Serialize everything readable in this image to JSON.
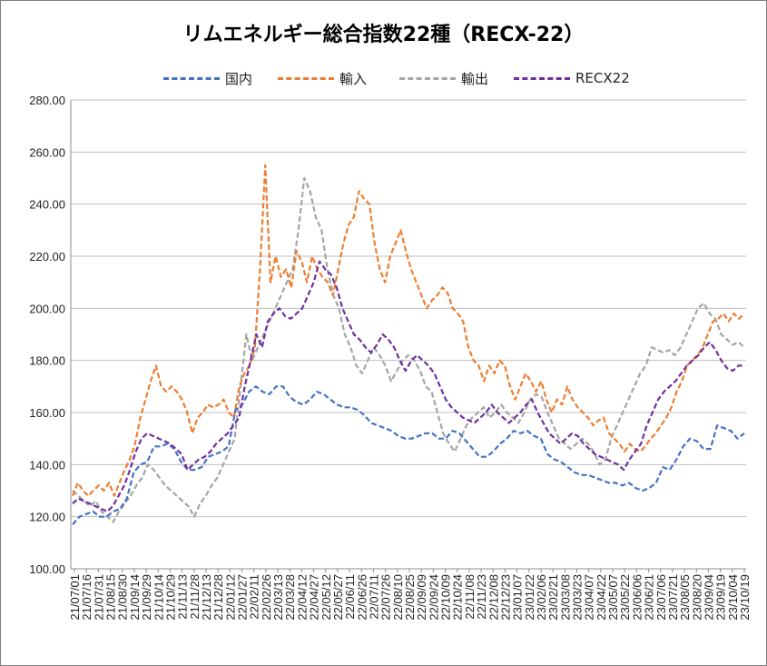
{
  "chart_data": {
    "type": "line",
    "title": "リムエネルギー総合指数22種（RECX-22）",
    "ylim": [
      100,
      280
    ],
    "yticks": [
      "100.00",
      "120.00",
      "140.00",
      "160.00",
      "180.00",
      "200.00",
      "220.00",
      "240.00",
      "260.00",
      "280.00"
    ],
    "x_labels": [
      "21/07/01",
      "21/07/16",
      "21/07/31",
      "21/08/15",
      "21/08/30",
      "21/09/14",
      "21/09/29",
      "21/10/14",
      "21/10/29",
      "21/11/13",
      "21/11/28",
      "21/12/13",
      "21/12/28",
      "22/01/12",
      "22/01/27",
      "22/02/11",
      "22/02/26",
      "22/03/13",
      "22/03/28",
      "22/04/12",
      "22/04/27",
      "22/05/12",
      "22/05/27",
      "22/06/11",
      "22/06/26",
      "22/07/11",
      "22/07/26",
      "22/08/10",
      "22/08/25",
      "22/09/09",
      "22/09/24",
      "22/10/09",
      "22/10/24",
      "22/11/08",
      "22/11/23",
      "22/12/08",
      "22/12/23",
      "23/01/07",
      "23/01/22",
      "23/02/06",
      "23/02/21",
      "23/03/08",
      "23/03/23",
      "23/04/07",
      "23/04/22",
      "23/05/07",
      "23/05/22",
      "23/06/06",
      "23/06/21",
      "23/07/06",
      "23/07/21",
      "23/08/05",
      "23/08/20",
      "23/09/04",
      "23/09/19",
      "23/10/04",
      "23/10/19"
    ],
    "grid": true,
    "legend_position": "top",
    "series": [
      {
        "name": "国内",
        "color": "#4472C4",
        "values": [
          117,
          120,
          121,
          122,
          120,
          120,
          122,
          123,
          127,
          137,
          140,
          141,
          147,
          147,
          148,
          146,
          141,
          138,
          138,
          139,
          143,
          144,
          145,
          147,
          161,
          163,
          168,
          170,
          168,
          167,
          170,
          170,
          166,
          164,
          163,
          165,
          168,
          167,
          165,
          163,
          162,
          162,
          161,
          159,
          156,
          155,
          154,
          153,
          151,
          150,
          150,
          151,
          152,
          152,
          150,
          150,
          153,
          152,
          149,
          146,
          143,
          143,
          145,
          148,
          150,
          153,
          152,
          153,
          151,
          150,
          144,
          142,
          141,
          139,
          137,
          136,
          136,
          135,
          134,
          133,
          133,
          132,
          133,
          131,
          130,
          131,
          133,
          139,
          138,
          142,
          147,
          150,
          149,
          146,
          146,
          155,
          154,
          153,
          150,
          152
        ]
      },
      {
        "name": "輸入",
        "color": "#ED7D31",
        "values": [
          128,
          133,
          130,
          128,
          130,
          132,
          130,
          133,
          128,
          133,
          138,
          142,
          148,
          158,
          165,
          172,
          178,
          170,
          168,
          170,
          168,
          165,
          160,
          152,
          158,
          160,
          163,
          162,
          163,
          165,
          160,
          158,
          170,
          175,
          178,
          185,
          215,
          255,
          210,
          220,
          212,
          215,
          208,
          222,
          218,
          210,
          220,
          215,
          212,
          210,
          205,
          215,
          225,
          232,
          235,
          245,
          242,
          240,
          225,
          215,
          210,
          220,
          225,
          230,
          222,
          215,
          210,
          205,
          200,
          203,
          205,
          208,
          206,
          200,
          198,
          195,
          185,
          180,
          178,
          172,
          178,
          175,
          180,
          178,
          170,
          165,
          170,
          175,
          172,
          168,
          172,
          165,
          160,
          165,
          163,
          170,
          165,
          162,
          160,
          158,
          155,
          157,
          158,
          152,
          150,
          148,
          145,
          148,
          146,
          145,
          147,
          150,
          152,
          155,
          158,
          162,
          168,
          172,
          178,
          180,
          182,
          185,
          190,
          195,
          196,
          198,
          195,
          198,
          196,
          198
        ]
      },
      {
        "name": "輸出",
        "color": "#A5A5A5",
        "values": [
          130,
          128,
          126,
          124,
          126,
          122,
          120,
          118,
          122,
          125,
          128,
          132,
          135,
          140,
          138,
          135,
          132,
          130,
          128,
          126,
          124,
          120,
          125,
          128,
          132,
          135,
          140,
          145,
          150,
          170,
          190,
          180,
          185,
          190,
          195,
          200,
          205,
          210,
          215,
          230,
          250,
          245,
          235,
          230,
          215,
          205,
          200,
          190,
          185,
          178,
          175,
          180,
          185,
          182,
          178,
          172,
          176,
          180,
          182,
          180,
          176,
          170,
          168,
          160,
          152,
          148,
          145,
          150,
          155,
          158,
          160,
          162,
          158,
          160,
          163,
          160,
          158,
          156,
          160,
          165,
          167,
          166,
          160,
          155,
          150,
          148,
          146,
          148,
          150,
          148,
          145,
          140,
          142,
          150,
          155,
          160,
          165,
          170,
          175,
          178,
          185,
          184,
          183,
          184,
          182,
          185,
          190,
          195,
          200,
          202,
          198,
          196,
          190,
          188,
          186,
          187,
          185
        ]
      },
      {
        "name": "RECX22",
        "color": "#7030A0",
        "values": [
          125,
          127,
          126,
          125,
          124,
          123,
          122,
          124,
          128,
          132,
          138,
          145,
          150,
          152,
          151,
          150,
          149,
          148,
          146,
          144,
          138,
          140,
          142,
          143,
          145,
          148,
          150,
          152,
          155,
          158,
          170,
          180,
          190,
          185,
          195,
          198,
          200,
          197,
          196,
          198,
          200,
          205,
          210,
          218,
          215,
          213,
          208,
          200,
          195,
          190,
          188,
          185,
          183,
          186,
          190,
          188,
          185,
          180,
          176,
          180,
          182,
          180,
          178,
          175,
          170,
          165,
          162,
          160,
          158,
          157,
          156,
          158,
          160,
          163,
          160,
          158,
          156,
          158,
          160,
          163,
          165,
          160,
          156,
          152,
          150,
          148,
          150,
          152,
          151,
          148,
          146,
          144,
          143,
          142,
          141,
          140,
          138,
          142,
          145,
          148,
          155,
          160,
          165,
          168,
          170,
          172,
          175,
          178,
          180,
          182,
          185,
          187,
          184,
          180,
          177,
          176,
          178,
          178
        ]
      }
    ]
  }
}
